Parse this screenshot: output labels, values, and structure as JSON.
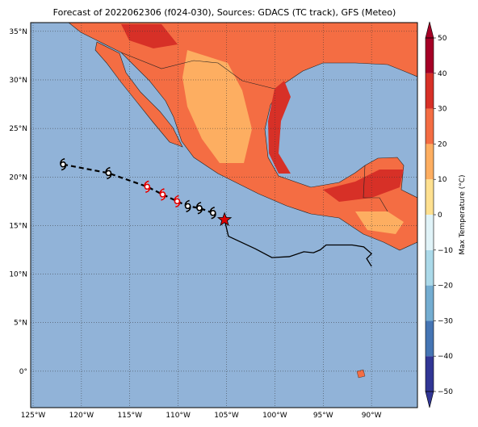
{
  "chart_data": {
    "type": "map",
    "title": "Forecast of 2022062306 (f024-030), Sources: GDACS (TC track), GFS (Meteo)",
    "colorbar_label": "Max Temperature (°C)",
    "xlim": [
      -125.25,
      -85.25
    ],
    "ylim": [
      -3.75,
      35.9
    ],
    "xticks": [
      {
        "value": -125,
        "label": "125°W"
      },
      {
        "value": -120,
        "label": "120°W"
      },
      {
        "value": -115,
        "label": "115°W"
      },
      {
        "value": -110,
        "label": "110°W"
      },
      {
        "value": -105,
        "label": "105°W"
      },
      {
        "value": -100,
        "label": "100°W"
      },
      {
        "value": -95,
        "label": "95°W"
      },
      {
        "value": -90,
        "label": "90°W"
      }
    ],
    "yticks": [
      {
        "value": 0,
        "label": "0°"
      },
      {
        "value": 5,
        "label": "5°N"
      },
      {
        "value": 10,
        "label": "10°N"
      },
      {
        "value": 15,
        "label": "15°N"
      },
      {
        "value": 20,
        "label": "20°N"
      },
      {
        "value": 25,
        "label": "25°N"
      },
      {
        "value": 30,
        "label": "30°N"
      },
      {
        "value": 35,
        "label": "35°N"
      }
    ],
    "grid": true,
    "colorbar": {
      "lim": [
        -50,
        50
      ],
      "ticks": [
        {
          "value": -50,
          "label": "−50"
        },
        {
          "value": -40,
          "label": "−40"
        },
        {
          "value": -30,
          "label": "−30"
        },
        {
          "value": -20,
          "label": "−20"
        },
        {
          "value": -10,
          "label": "−10"
        },
        0,
        10,
        20,
        30,
        40,
        50
      ],
      "colors": [
        "#313695",
        "#4575b4",
        "#74add1",
        "#abd9e9",
        "#e0f3f8",
        "#fee090",
        "#fdae61",
        "#f46d43",
        "#d73027",
        "#a50026"
      ]
    },
    "forecast_track": {
      "lon": [
        -121.9,
        -117.2,
        -113.2,
        -111.6,
        -110.1,
        -109.0,
        -107.8,
        -106.4
      ],
      "lat": [
        21.3,
        20.4,
        19.0,
        18.2,
        17.5,
        17.0,
        16.8,
        16.3
      ],
      "marker_colors": [
        "#000000",
        "#000000",
        "#e00000",
        "#e00000",
        "#e00000",
        "#000000",
        "#000000",
        "#000000"
      ]
    },
    "observed_track": {
      "lon": [
        -105.2,
        -104.8,
        -102.0,
        -100.3,
        -98.5,
        -97.0,
        -96.0,
        -95.3,
        -94.7,
        -92.0,
        -90.8,
        -90.0,
        -90.5,
        -90.0
      ],
      "lat": [
        15.6,
        13.9,
        12.6,
        11.7,
        11.8,
        12.3,
        12.2,
        12.5,
        13.0,
        13.0,
        12.8,
        12.1,
        11.6,
        10.8
      ]
    }
  }
}
